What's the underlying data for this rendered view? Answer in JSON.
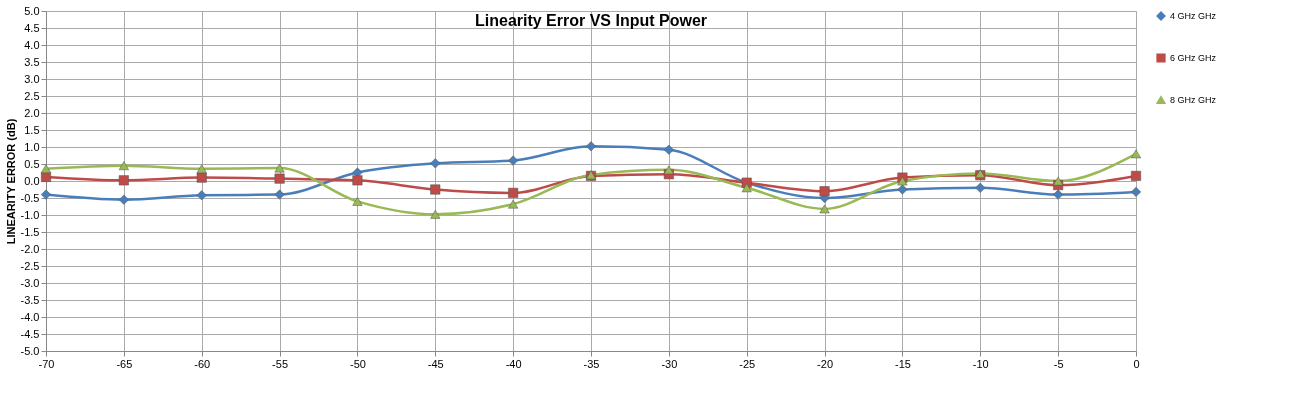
{
  "chart_data": {
    "type": "line",
    "title": "Linearity Error VS Input Power",
    "ylabel": "LINEARITY ERROR (dB)",
    "x": [
      -70,
      -65,
      -60,
      -55,
      -50,
      -45,
      -40,
      -35,
      -30,
      -25,
      -20,
      -15,
      -10,
      -5,
      0
    ],
    "series": [
      {
        "name": "4 GHz GHz",
        "color": "#4a7ebb",
        "marker": "diamond",
        "values": [
          -0.4,
          -0.55,
          -0.42,
          -0.4,
          0.25,
          0.52,
          0.6,
          1.02,
          0.92,
          -0.05,
          -0.5,
          -0.25,
          -0.2,
          -0.4,
          -0.32
        ]
      },
      {
        "name": "6 GHz GHz",
        "color": "#be4b48",
        "marker": "square",
        "values": [
          0.12,
          0.02,
          0.1,
          0.07,
          0.02,
          -0.25,
          -0.35,
          0.15,
          0.2,
          -0.05,
          -0.3,
          0.1,
          0.17,
          -0.12,
          0.15
        ]
      },
      {
        "name": "8 GHz GHz",
        "color": "#98b954",
        "marker": "triangle",
        "values": [
          0.36,
          0.45,
          0.36,
          0.38,
          -0.6,
          -0.98,
          -0.68,
          0.18,
          0.33,
          -0.2,
          -0.82,
          0.0,
          0.22,
          0.0,
          0.8
        ]
      }
    ],
    "xlim": [
      -70,
      0
    ],
    "xticks": [
      -70,
      -65,
      -60,
      -55,
      -50,
      -45,
      -40,
      -35,
      -30,
      -25,
      -20,
      -15,
      -10,
      -5,
      0
    ],
    "ylim": [
      -5,
      5
    ],
    "yticks": [
      {
        "value": -5,
        "label": "-5.0"
      },
      {
        "value": -4.5,
        "label": "-4.5"
      },
      {
        "value": -4,
        "label": "-4.0"
      },
      {
        "value": -3.5,
        "label": "-3.5"
      },
      {
        "value": -3,
        "label": "-3.0"
      },
      {
        "value": -2.5,
        "label": "-2.5"
      },
      {
        "value": -2,
        "label": "-2.0"
      },
      {
        "value": -1.5,
        "label": "-1.5"
      },
      {
        "value": -1,
        "label": "-1.0"
      },
      {
        "value": -0.5,
        "label": "-0.5"
      },
      {
        "value": 0,
        "label": "0.0"
      },
      {
        "value": 0.5,
        "label": "0.5"
      },
      {
        "value": 1,
        "label": "1.0"
      },
      {
        "value": 1.5,
        "label": "1.5"
      },
      {
        "value": 2,
        "label": "2.0"
      },
      {
        "value": 2.5,
        "label": "2.5"
      },
      {
        "value": 3,
        "label": "3.0"
      },
      {
        "value": 3.5,
        "label": "3.5"
      },
      {
        "value": 4,
        "label": "4.0"
      },
      {
        "value": 4.5,
        "label": "4.5"
      },
      {
        "value": 5,
        "label": "5.0"
      }
    ],
    "grid": true,
    "legend": "right",
    "line_style": "solid"
  }
}
